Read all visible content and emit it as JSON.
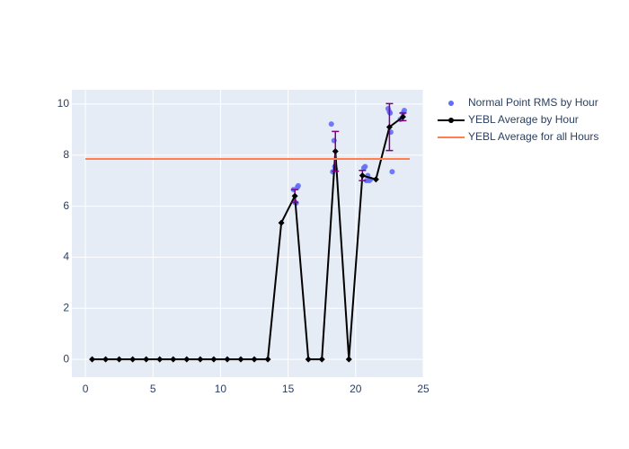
{
  "chart_data": {
    "type": "scatter-line",
    "xlim": [
      -1,
      25
    ],
    "xticks": [
      0,
      5,
      10,
      15,
      20,
      25
    ],
    "ylim": [
      -0.7,
      10.56
    ],
    "yticks": [
      0,
      2,
      4,
      6,
      8,
      10
    ],
    "grid": true,
    "legend": "top-right",
    "series": [
      {
        "name": "Normal Point RMS by Hour",
        "mode": "markers",
        "color": "#636efa",
        "x": [
          15.4,
          15.5,
          15.6,
          15.7,
          15.75,
          18.2,
          18.3,
          18.4,
          18.45,
          18.5,
          20.6,
          20.7,
          20.8,
          20.9,
          21.0,
          21.1,
          22.4,
          22.5,
          22.55,
          22.6,
          22.7,
          23.3,
          23.5,
          23.6
        ],
        "values": [
          6.65,
          6.15,
          6.12,
          6.75,
          6.8,
          9.22,
          7.35,
          8.57,
          7.55,
          7.45,
          7.5,
          7.55,
          7.0,
          7.2,
          7.0,
          7.05,
          9.82,
          9.7,
          9.65,
          8.9,
          7.35,
          9.4,
          9.65,
          9.75
        ]
      },
      {
        "name": "YEBL Average by Hour",
        "mode": "lines+markers",
        "color": "#000000",
        "error_color": "#800080",
        "x": [
          0.5,
          1.5,
          2.5,
          3.5,
          4.5,
          5.5,
          6.5,
          7.5,
          8.5,
          9.5,
          10.5,
          11.5,
          12.5,
          13.5,
          14.5,
          15.5,
          16.5,
          17.5,
          18.5,
          19.5,
          20.5,
          21.5,
          22.5,
          23.5
        ],
        "values": [
          0,
          0,
          0,
          0,
          0,
          0,
          0,
          0,
          0,
          0,
          0,
          0,
          0,
          0,
          5.35,
          6.4,
          0,
          0,
          8.15,
          0,
          7.2,
          7.05,
          9.1,
          9.5
        ],
        "error": [
          null,
          null,
          null,
          null,
          null,
          null,
          null,
          null,
          null,
          null,
          null,
          null,
          null,
          null,
          null,
          0.25,
          null,
          null,
          0.78,
          null,
          0.2,
          null,
          0.92,
          0.15
        ]
      },
      {
        "name": "YEBL Average for all Hours",
        "mode": "lines",
        "color": "#ff7f50",
        "x": [
          0,
          24
        ],
        "values": [
          7.85,
          7.85
        ]
      }
    ]
  }
}
